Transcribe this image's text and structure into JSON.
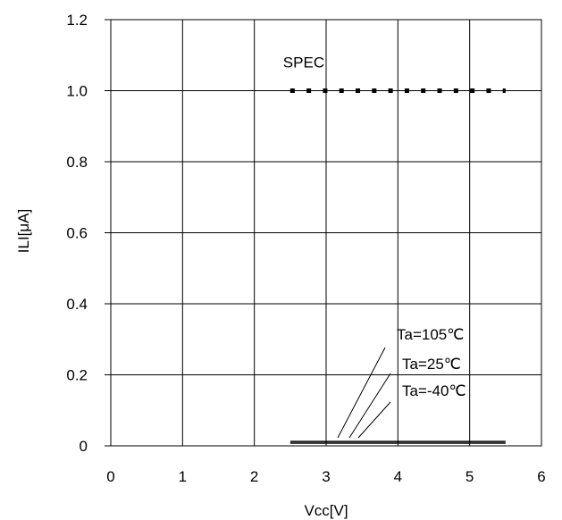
{
  "chart_data": {
    "type": "line",
    "title": "",
    "xlabel": "Vcc[V]",
    "ylabel": "ILI[μA]",
    "xlim": [
      0,
      6
    ],
    "ylim": [
      0,
      1.2
    ],
    "grid": true,
    "x_ticks": [
      0,
      1,
      2,
      3,
      4,
      5,
      6
    ],
    "x_tick_labels": [
      "0",
      "1",
      "2",
      "3",
      "4",
      "5",
      "6"
    ],
    "y_ticks": [
      0,
      0.2,
      0.4,
      0.6,
      0.8,
      1.0,
      1.2
    ],
    "y_tick_labels": [
      "0",
      "0.2",
      "0.4",
      "0.6",
      "0.8",
      "1.0",
      "1.2"
    ],
    "spec": {
      "label": "SPEC",
      "value": 1.0,
      "x_range": [
        2.5,
        5.5
      ],
      "style": "dotted"
    },
    "series": [
      {
        "name": "Ta=105℃",
        "x": [
          2.5,
          5.5
        ],
        "y": [
          0.013,
          0.013
        ]
      },
      {
        "name": "Ta=25℃",
        "x": [
          2.5,
          5.5
        ],
        "y": [
          0.01,
          0.01
        ]
      },
      {
        "name": "Ta=-40℃",
        "x": [
          2.5,
          5.5
        ],
        "y": [
          0.007,
          0.007
        ]
      }
    ]
  }
}
